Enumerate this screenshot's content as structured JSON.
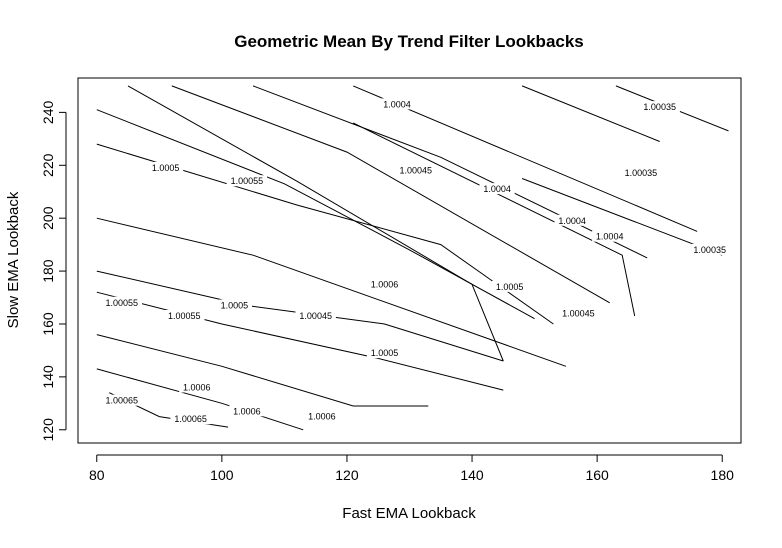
{
  "chart_data": {
    "type": "contour",
    "title": "Geometric Mean By Trend Filter Lookbacks",
    "xlabel": "Fast EMA Lookback",
    "ylabel": "Slow EMA Lookback",
    "xlim": [
      77,
      183
    ],
    "ylim": [
      115,
      253
    ],
    "x_ticks": [
      80,
      100,
      120,
      140,
      160,
      180
    ],
    "y_ticks": [
      120,
      140,
      160,
      180,
      200,
      220,
      240
    ],
    "grid": false,
    "legend": "none",
    "levels": [
      {
        "label": "1.00035",
        "lines": [
          [
            [
              163,
              250
            ],
            [
              181,
              233
            ]
          ],
          [
            [
              148,
              215
            ],
            [
              180,
              186
            ]
          ]
        ]
      },
      {
        "label": "1.0004",
        "lines": [
          [
            [
              148,
              250
            ],
            [
              170,
              229
            ]
          ],
          [
            [
              121,
              250
            ],
            [
              176,
              195
            ]
          ]
        ]
      },
      {
        "label": "1.00045",
        "lines": [
          [
            [
              105,
              250
            ],
            [
              135,
              223
            ],
            [
              168,
              185
            ]
          ],
          [
            [
              121,
              236
            ],
            [
              164,
              186
            ],
            [
              166,
              163
            ]
          ]
        ]
      },
      {
        "label": "1.0005",
        "lines": [
          [
            [
              92,
              250
            ],
            [
              120,
              225
            ],
            [
              162,
              168
            ]
          ],
          [
            [
              80,
              200
            ],
            [
              105,
              186
            ],
            [
              155,
              144
            ]
          ]
        ]
      },
      {
        "label": "1.00055",
        "lines": [
          [
            [
              80,
              228
            ],
            [
              112,
              205
            ],
            [
              135,
              190
            ],
            [
              153,
              160
            ]
          ],
          [
            [
              80,
              180
            ],
            [
              104,
              167
            ],
            [
              126,
              160
            ],
            [
              145,
              146
            ]
          ]
        ]
      },
      {
        "label": "1.0006",
        "lines": [
          [
            [
              80,
              241
            ],
            [
              110,
              213
            ],
            [
              130,
              188
            ],
            [
              150,
              162
            ]
          ],
          [
            [
              80,
              172
            ],
            [
              100,
              160
            ],
            [
              125,
              147
            ],
            [
              145,
              135
            ]
          ],
          [
            [
              80,
              156
            ],
            [
              100,
              144
            ],
            [
              121,
              129
            ],
            [
              133,
              129
            ]
          ]
        ]
      },
      {
        "label": "1.00065",
        "lines": [
          [
            [
              85,
              250
            ],
            [
              112,
              214
            ],
            [
              140,
              175
            ],
            [
              145,
              146
            ]
          ],
          [
            [
              80,
              143
            ],
            [
              100,
              130
            ],
            [
              113,
              120
            ]
          ],
          [
            [
              82,
              134
            ],
            [
              90,
              125
            ],
            [
              101,
              121
            ]
          ]
        ]
      }
    ],
    "contour_labels": [
      {
        "text": "1.00035",
        "x": 170,
        "y": 242
      },
      {
        "text": "1.00035",
        "x": 167,
        "y": 217
      },
      {
        "text": "1.00035",
        "x": 178,
        "y": 188
      },
      {
        "text": "1.0004",
        "x": 128,
        "y": 243
      },
      {
        "text": "1.0004",
        "x": 144,
        "y": 211
      },
      {
        "text": "1.0004",
        "x": 156,
        "y": 199
      },
      {
        "text": "1.0004",
        "x": 162,
        "y": 193
      },
      {
        "text": "1.00045",
        "x": 131,
        "y": 218
      },
      {
        "text": "1.00045",
        "x": 157,
        "y": 164
      },
      {
        "text": "1.00045",
        "x": 115,
        "y": 163
      },
      {
        "text": "1.0005",
        "x": 91,
        "y": 219
      },
      {
        "text": "1.0005",
        "x": 146,
        "y": 174
      },
      {
        "text": "1.0005",
        "x": 102,
        "y": 167
      },
      {
        "text": "1.0005",
        "x": 126,
        "y": 149
      },
      {
        "text": "1.00055",
        "x": 104,
        "y": 214
      },
      {
        "text": "1.00055",
        "x": 84,
        "y": 168
      },
      {
        "text": "1.00055",
        "x": 94,
        "y": 163
      },
      {
        "text": "1.0006",
        "x": 126,
        "y": 175
      },
      {
        "text": "1.0006",
        "x": 116,
        "y": 125
      },
      {
        "text": "1.0006",
        "x": 96,
        "y": 136
      },
      {
        "text": "1.0006",
        "x": 104,
        "y": 127
      },
      {
        "text": "1.00065",
        "x": 84,
        "y": 131
      },
      {
        "text": "1.00065",
        "x": 95,
        "y": 124
      }
    ]
  }
}
